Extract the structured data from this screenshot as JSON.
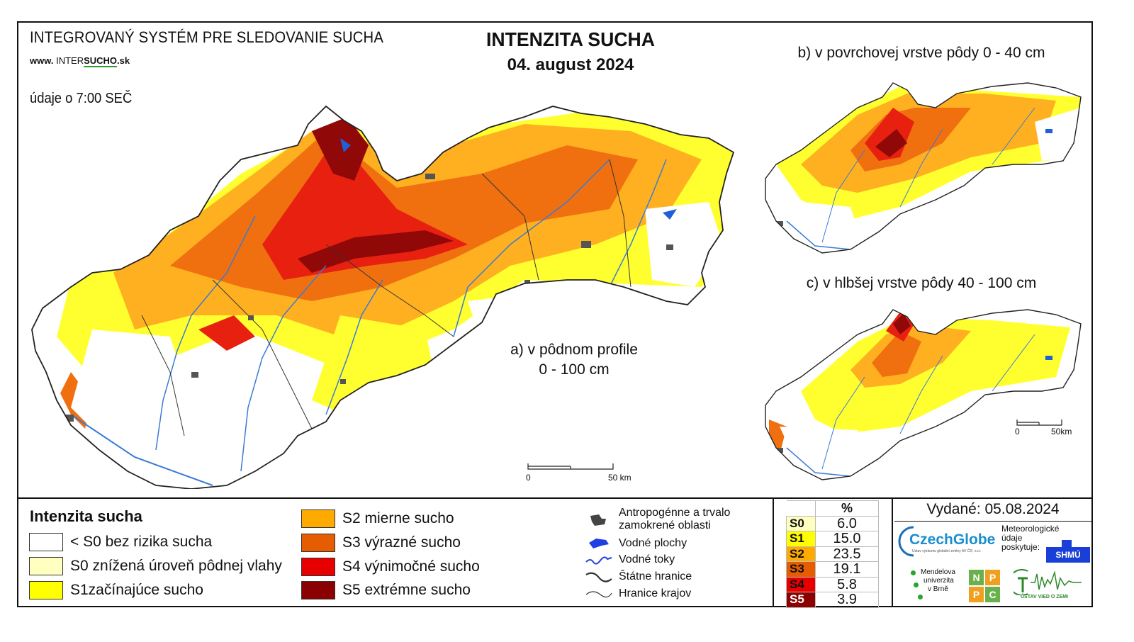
{
  "header": {
    "system_title": "INTEGROVANÝ SYSTÉM PRE SLEDOVANIE SUCHA",
    "website_www": "www.",
    "website_inter": "INTER",
    "website_sucho": "SUCHO",
    "website_tld": ".sk",
    "measurement_time": "údaje o 7:00 SEČ",
    "title": "INTENZITA SUCHA",
    "date": "04. august 2024"
  },
  "maps": {
    "a": {
      "caption_line1": "a) v pôdnom profile",
      "caption_line2": "0 - 100 cm",
      "scale_start": "0",
      "scale_end": "50 km"
    },
    "b": {
      "caption": "b) v povrchovej vrstve pôdy 0 - 40 cm"
    },
    "c": {
      "caption": "c) v hlbšej vrstve pôdy 40 - 100 cm",
      "scale_start": "0",
      "scale_end": "50km"
    }
  },
  "legend": {
    "title": "Intenzita sucha",
    "classes": [
      {
        "label": "< S0 bez rizika sucha",
        "color": "#ffffff"
      },
      {
        "label": "S0 znížená úroveň pôdnej vlahy",
        "color": "#ffffc0"
      },
      {
        "label": "S1začínajúce sucho",
        "color": "#ffff00"
      },
      {
        "label": "S2 mierne sucho",
        "color": "#ffaa00"
      },
      {
        "label": "S3 výrazné sucho",
        "color": "#e65c00"
      },
      {
        "label": "S4 výnimočné sucho",
        "color": "#e60000"
      },
      {
        "label": "S5 extrémne sucho",
        "color": "#8b0000"
      }
    ],
    "symbols": [
      {
        "label_line1": "Antropogénne a trvalo",
        "label_line2": "zamokrené oblasti",
        "icon": "urban-area-icon"
      },
      {
        "label": "Vodné plochy",
        "icon": "water-body-icon"
      },
      {
        "label": "Vodné toky",
        "icon": "river-icon"
      },
      {
        "label": "Štátne hranice",
        "icon": "state-border-icon"
      },
      {
        "label": "Hranice krajov",
        "icon": "region-border-icon"
      }
    ]
  },
  "percent_table": {
    "header": "%",
    "rows": [
      {
        "code": "S0",
        "value": "6.0",
        "color": "#ffffc0"
      },
      {
        "code": "S1",
        "value": "15.0",
        "color": "#ffff00"
      },
      {
        "code": "S2",
        "value": "23.5",
        "color": "#ffaa00"
      },
      {
        "code": "S3",
        "value": "19.1",
        "color": "#e65c00"
      },
      {
        "code": "S4",
        "value": "5.8",
        "color": "#e60000"
      },
      {
        "code": "S5",
        "value": "3.9",
        "color": "#8b0000"
      }
    ]
  },
  "issued": "Vydané: 05.08.2024",
  "logos": {
    "czechglobe": "CzechGlobe",
    "czechglobe_sub": "Ústav výzkumu globální změny AV ČR, v.v.i.",
    "shmu_note_line1": "Meteorologické",
    "shmu_note_line2": "údaje",
    "shmu_note_line3": "poskytuje:",
    "shmu": "SHMÚ",
    "mendel_line1": "Mendelova",
    "mendel_line2": "univerzita",
    "mendel_line3": "v Brně",
    "npc_letters": [
      "N",
      "P",
      "P",
      "C"
    ],
    "uvz": "ÚSTAV VIED O ZEMI"
  }
}
